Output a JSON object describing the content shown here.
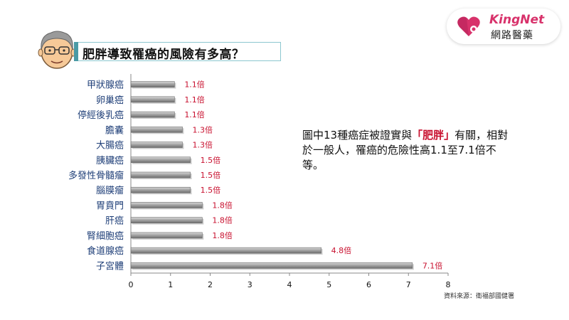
{
  "title": "肥胖導致罹癌的風險有多高？",
  "logo": {
    "brand": "KingNet",
    "name_zh": "網路醫藥",
    "accent": "#d8326b"
  },
  "note": {
    "pre": "圖中13種癌症被證實與",
    "highlight": "「肥胖」",
    "post": "有關，相對於一般人，罹癌的危險性高1.1至7.1倍不等。"
  },
  "source": "資料來源：衛福部國健署",
  "colors": {
    "bar": "#8a8a8a",
    "bar_highlight": "#bdbdbd",
    "label": "#1f3f78",
    "value_label": "#c8102e"
  },
  "chart_data": {
    "type": "bar",
    "orientation": "horizontal",
    "categories": [
      "甲狀腺癌",
      "卵巢癌",
      "停經後乳癌",
      "膽囊",
      "大腸癌",
      "胰臟癌",
      "多發性骨髓瘤",
      "腦膜瘤",
      "胃賁門",
      "肝癌",
      "腎細胞癌",
      "食道腺癌",
      "子宮體"
    ],
    "values": [
      1.1,
      1.1,
      1.1,
      1.3,
      1.3,
      1.5,
      1.5,
      1.5,
      1.8,
      1.8,
      1.8,
      4.8,
      7.1
    ],
    "data_labels": [
      "1.1倍",
      "1.1倍",
      "1.1倍",
      "1.3倍",
      "1.3倍",
      "1.5倍",
      "1.5倍",
      "1.5倍",
      "1.8倍",
      "1.8倍",
      "1.8倍",
      "4.8倍",
      "7.1倍"
    ],
    "x_ticks": [
      "0",
      "1",
      "2",
      "3",
      "4",
      "5",
      "6",
      "7",
      "8"
    ],
    "xlim": [
      0,
      8
    ],
    "grid": false,
    "legend": "none"
  }
}
